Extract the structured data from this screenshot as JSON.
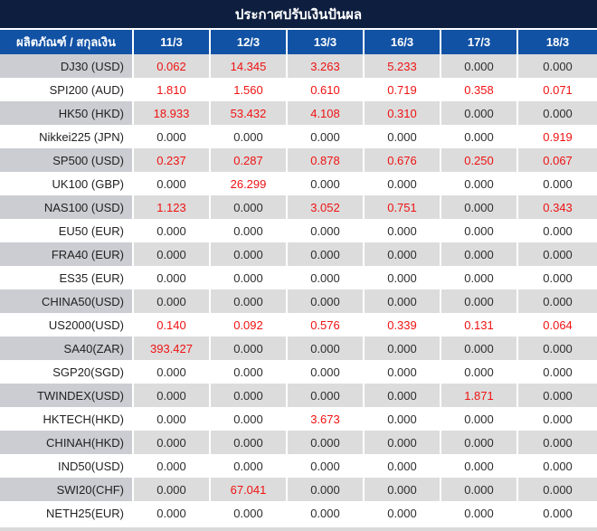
{
  "title": "ประกาศปรับเงินปันผล",
  "colors": {
    "title_bg": "#0d1e3f",
    "header_bg": "#1152a5",
    "striped_row_bg": "#dcdcdc",
    "striped_label_bg": "#cbcdd2",
    "nonzero_value_color": "#f01212",
    "zero_value_color": "#2d2d2d"
  },
  "table": {
    "label_header": "ผลิตภัณฑ์ / สกุลเงิน",
    "date_headers": [
      "11/3",
      "12/3",
      "13/3",
      "16/3",
      "17/3",
      "18/3"
    ],
    "zero_value": "0.000",
    "rows": [
      {
        "product": "DJ30 (USD)",
        "values": [
          "0.062",
          "14.345",
          "3.263",
          "5.233",
          "0.000",
          "0.000"
        ]
      },
      {
        "product": "SPI200 (AUD)",
        "values": [
          "1.810",
          "1.560",
          "0.610",
          "0.719",
          "0.358",
          "0.071"
        ]
      },
      {
        "product": "HK50 (HKD)",
        "values": [
          "18.933",
          "53.432",
          "4.108",
          "0.310",
          "0.000",
          "0.000"
        ]
      },
      {
        "product": "Nikkei225 (JPN)",
        "values": [
          "0.000",
          "0.000",
          "0.000",
          "0.000",
          "0.000",
          "0.919"
        ]
      },
      {
        "product": "SP500 (USD)",
        "values": [
          "0.237",
          "0.287",
          "0.878",
          "0.676",
          "0.250",
          "0.067"
        ]
      },
      {
        "product": "UK100 (GBP)",
        "values": [
          "0.000",
          "26.299",
          "0.000",
          "0.000",
          "0.000",
          "0.000"
        ]
      },
      {
        "product": "NAS100 (USD)",
        "values": [
          "1.123",
          "0.000",
          "3.052",
          "0.751",
          "0.000",
          "0.343"
        ]
      },
      {
        "product": "EU50 (EUR)",
        "values": [
          "0.000",
          "0.000",
          "0.000",
          "0.000",
          "0.000",
          "0.000"
        ]
      },
      {
        "product": "FRA40 (EUR)",
        "values": [
          "0.000",
          "0.000",
          "0.000",
          "0.000",
          "0.000",
          "0.000"
        ]
      },
      {
        "product": "ES35 (EUR)",
        "values": [
          "0.000",
          "0.000",
          "0.000",
          "0.000",
          "0.000",
          "0.000"
        ]
      },
      {
        "product": "CHINA50(USD)",
        "values": [
          "0.000",
          "0.000",
          "0.000",
          "0.000",
          "0.000",
          "0.000"
        ]
      },
      {
        "product": "US2000(USD)",
        "values": [
          "0.140",
          "0.092",
          "0.576",
          "0.339",
          "0.131",
          "0.064"
        ]
      },
      {
        "product": "SA40(ZAR)",
        "values": [
          "393.427",
          "0.000",
          "0.000",
          "0.000",
          "0.000",
          "0.000"
        ]
      },
      {
        "product": "SGP20(SGD)",
        "values": [
          "0.000",
          "0.000",
          "0.000",
          "0.000",
          "0.000",
          "0.000"
        ]
      },
      {
        "product": "TWINDEX(USD)",
        "values": [
          "0.000",
          "0.000",
          "0.000",
          "0.000",
          "1.871",
          "0.000"
        ]
      },
      {
        "product": "HKTECH(HKD)",
        "values": [
          "0.000",
          "0.000",
          "3.673",
          "0.000",
          "0.000",
          "0.000"
        ]
      },
      {
        "product": "CHINAH(HKD)",
        "values": [
          "0.000",
          "0.000",
          "0.000",
          "0.000",
          "0.000",
          "0.000"
        ]
      },
      {
        "product": "IND50(USD)",
        "values": [
          "0.000",
          "0.000",
          "0.000",
          "0.000",
          "0.000",
          "0.000"
        ]
      },
      {
        "product": "SWI20(CHF)",
        "values": [
          "0.000",
          "67.041",
          "0.000",
          "0.000",
          "0.000",
          "0.000"
        ]
      },
      {
        "product": "NETH25(EUR)",
        "values": [
          "0.000",
          "0.000",
          "0.000",
          "0.000",
          "0.000",
          "0.000"
        ]
      }
    ]
  }
}
